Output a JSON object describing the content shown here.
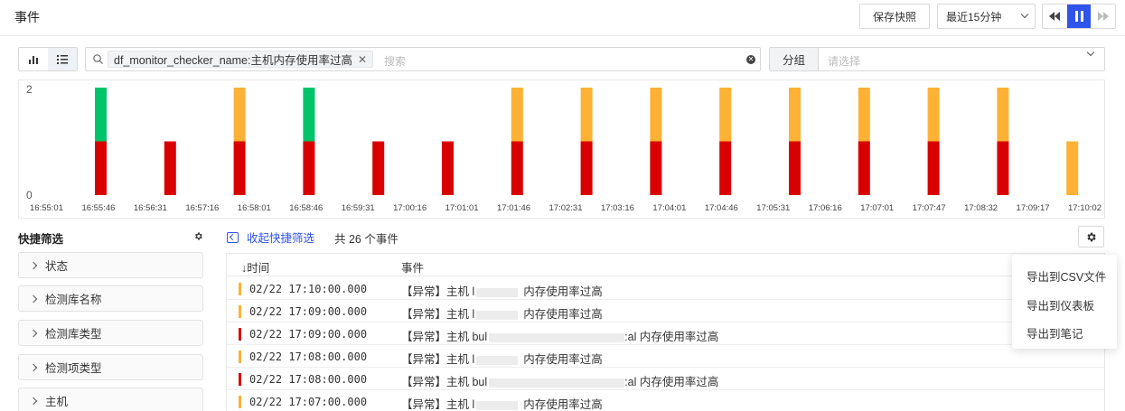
{
  "header": {
    "title": "事件",
    "snapshot_label": "保存快照",
    "time_range": "最近15分钟",
    "colors": {
      "accent": "#2f54eb"
    }
  },
  "search": {
    "filter_tag": "df_monitor_checker_name:主机内存使用率过高",
    "placeholder": "搜索"
  },
  "group": {
    "label": "分组",
    "placeholder": "请选择"
  },
  "chart_data": {
    "type": "bar",
    "stacked": true,
    "y_ticks": [
      "2",
      "0"
    ],
    "ylim": [
      0,
      2
    ],
    "x_ticks": [
      "16:55:01",
      "16:55:46",
      "16:56:31",
      "16:57:16",
      "16:58:01",
      "16:58:46",
      "16:59:31",
      "17:00:16",
      "17:01:01",
      "17:01:46",
      "17:02:31",
      "17:03:16",
      "17:04:01",
      "17:04:46",
      "17:05:31",
      "17:06:16",
      "17:07:01",
      "17:07:47",
      "17:08:32",
      "17:09:17",
      "17:10:02"
    ],
    "bars": [
      {
        "x": "16:55:46",
        "critical": 1,
        "ok": 1,
        "warning": 0
      },
      {
        "x": "16:56:46",
        "critical": 1,
        "ok": 0,
        "warning": 0
      },
      {
        "x": "16:57:46",
        "critical": 1,
        "ok": 0,
        "warning": 1
      },
      {
        "x": "16:58:46",
        "critical": 1,
        "ok": 1,
        "warning": 0
      },
      {
        "x": "16:59:46",
        "critical": 1,
        "ok": 0,
        "warning": 0
      },
      {
        "x": "17:00:46",
        "critical": 1,
        "ok": 0,
        "warning": 0
      },
      {
        "x": "17:01:46",
        "critical": 1,
        "ok": 0,
        "warning": 1
      },
      {
        "x": "17:02:46",
        "critical": 1,
        "ok": 0,
        "warning": 1
      },
      {
        "x": "17:03:46",
        "critical": 1,
        "ok": 0,
        "warning": 1
      },
      {
        "x": "17:04:46",
        "critical": 1,
        "ok": 0,
        "warning": 1
      },
      {
        "x": "17:05:46",
        "critical": 1,
        "ok": 0,
        "warning": 1
      },
      {
        "x": "17:06:46",
        "critical": 1,
        "ok": 0,
        "warning": 1
      },
      {
        "x": "17:07:46",
        "critical": 1,
        "ok": 0,
        "warning": 1
      },
      {
        "x": "17:08:46",
        "critical": 1,
        "ok": 0,
        "warning": 1
      },
      {
        "x": "17:09:46",
        "critical": 0,
        "ok": 0,
        "warning": 1
      }
    ],
    "colors": {
      "critical": "#d90000",
      "warning": "#fdb135",
      "ok": "#00c46a"
    },
    "grid": false
  },
  "quick_filter": {
    "title": "快捷筛选",
    "items": [
      "状态",
      "检测库名称",
      "检测库类型",
      "检测项类型",
      "主机"
    ]
  },
  "list": {
    "collapse_label": "收起快捷筛选",
    "total_text": "共 26 个事件",
    "headers": {
      "time": "时间",
      "event": "事件"
    },
    "rows": [
      {
        "level": "warning",
        "time": "02/22 17:10:00.000",
        "prefix": "【异常】主机 l",
        "suffix": "内存使用率过高"
      },
      {
        "level": "warning",
        "time": "02/22 17:09:00.000",
        "prefix": "【异常】主机 l",
        "suffix": "内存使用率过高"
      },
      {
        "level": "critical",
        "time": "02/22 17:09:00.000",
        "prefix": "【异常】主机 bul",
        "suffix": ":al 内存使用率过高"
      },
      {
        "level": "warning",
        "time": "02/22 17:08:00.000",
        "prefix": "【异常】主机 l",
        "suffix": "内存使用率过高"
      },
      {
        "level": "critical",
        "time": "02/22 17:08:00.000",
        "prefix": "【异常】主机 bul",
        "suffix": ":al 内存使用率过高"
      },
      {
        "level": "warning",
        "time": "02/22 17:07:00.000",
        "prefix": "【异常】主机 l",
        "suffix": "内存使用率过高"
      }
    ]
  },
  "export_menu": {
    "items": [
      "导出到CSV文件",
      "导出到仪表板",
      "导出到笔记"
    ]
  }
}
